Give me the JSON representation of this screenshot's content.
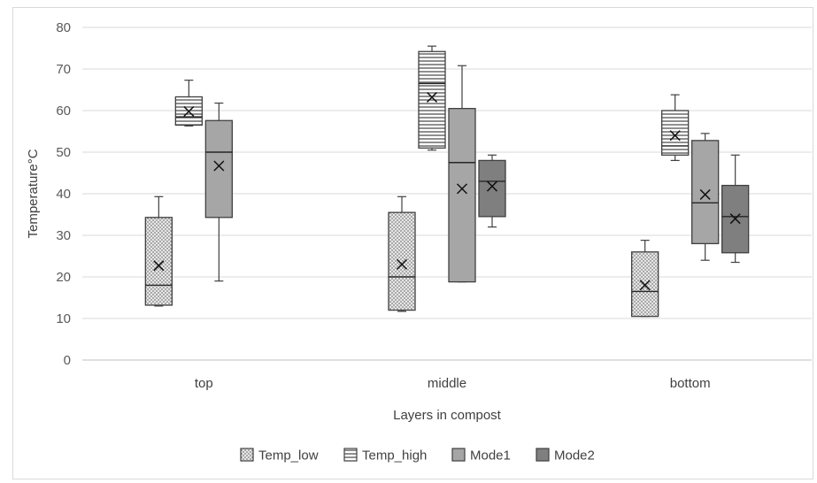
{
  "chart_data": {
    "type": "boxplot",
    "title": "",
    "xlabel": "Layers in compost",
    "ylabel": "Temperature°C",
    "ylim": [
      0,
      80
    ],
    "yticks": [
      0,
      10,
      20,
      30,
      40,
      50,
      60,
      70,
      80
    ],
    "grid": "horizontal",
    "legend_position": "bottom",
    "categories": [
      "top",
      "middle",
      "bottom"
    ],
    "series": [
      {
        "name": "Temp_low",
        "fill": "dotted",
        "color": "#bfbfbf",
        "boxes": [
          {
            "category": "top",
            "min": 13,
            "q1": 13.2,
            "median": 18,
            "q3": 34.3,
            "max": 39.3,
            "mean": 22.7
          },
          {
            "category": "middle",
            "min": 11.7,
            "q1": 12,
            "median": 20,
            "q3": 35.5,
            "max": 39.3,
            "mean": 23
          },
          {
            "category": "bottom",
            "min": 10.5,
            "q1": 10.5,
            "median": 16.5,
            "q3": 26,
            "max": 28.8,
            "mean": 18
          }
        ]
      },
      {
        "name": "Temp_high",
        "fill": "horizontal-lines",
        "color": "#ffffff",
        "boxes": [
          {
            "category": "top",
            "min": 56.3,
            "q1": 56.5,
            "median": 58.5,
            "q3": 63.3,
            "max": 67.3,
            "mean": 59.8
          },
          {
            "category": "middle",
            "min": 50.5,
            "q1": 51,
            "median": 66.5,
            "q3": 74.2,
            "max": 75.5,
            "mean": 63.2
          },
          {
            "category": "bottom",
            "min": 48,
            "q1": 49.3,
            "median": 51.5,
            "q3": 60,
            "max": 63.8,
            "mean": 54
          }
        ]
      },
      {
        "name": "Mode1",
        "fill": "solid",
        "color": "#a6a6a6",
        "boxes": [
          {
            "category": "top",
            "min": 19,
            "q1": 34.3,
            "median": 50,
            "q3": 57.6,
            "max": 61.8,
            "mean": 46.7
          },
          {
            "category": "middle",
            "min": 18.8,
            "q1": 18.8,
            "median": 47.5,
            "q3": 60.5,
            "max": 70.8,
            "mean": 41.2
          },
          {
            "category": "bottom",
            "min": 24,
            "q1": 28,
            "median": 37.8,
            "q3": 52.8,
            "max": 54.5,
            "mean": 39.8
          }
        ]
      },
      {
        "name": "Mode2",
        "fill": "solid",
        "color": "#7f7f7f",
        "boxes": [
          {
            "category": "middle",
            "min": 32,
            "q1": 34.5,
            "median": 43,
            "q3": 48,
            "max": 49.3,
            "mean": 41.8
          },
          {
            "category": "bottom",
            "min": 23.5,
            "q1": 25.8,
            "median": 34.5,
            "q3": 42,
            "max": 49.3,
            "mean": 34
          }
        ]
      }
    ]
  }
}
